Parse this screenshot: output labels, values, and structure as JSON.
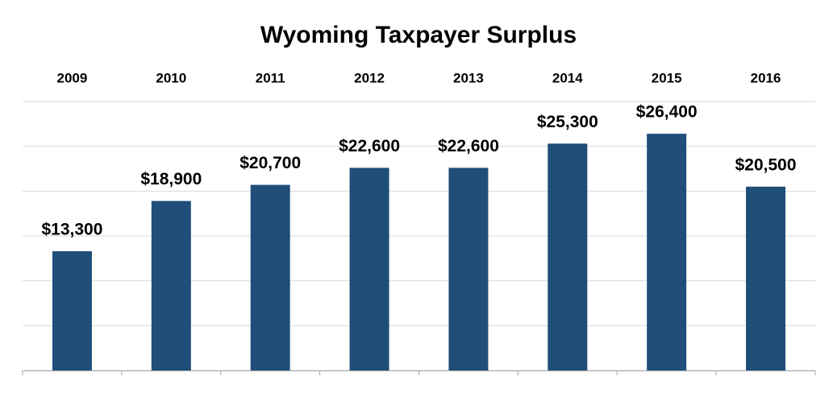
{
  "chart_data": {
    "type": "bar",
    "title": "Wyoming Taxpayer Surplus",
    "categories": [
      "2009",
      "2010",
      "2011",
      "2012",
      "2013",
      "2014",
      "2015",
      "2016"
    ],
    "values": [
      13300,
      18900,
      20700,
      22600,
      22600,
      25300,
      26400,
      20500
    ],
    "value_labels": [
      "$13,300",
      "$18,900",
      "$20,700",
      "$22,600",
      "$22,600",
      "$25,300",
      "$26,400",
      "$20,500"
    ],
    "color": "#1f4e79",
    "ylim": [
      0,
      30000
    ],
    "yticks": [
      0,
      5000,
      10000,
      15000,
      20000,
      25000,
      30000
    ],
    "grid": true
  }
}
